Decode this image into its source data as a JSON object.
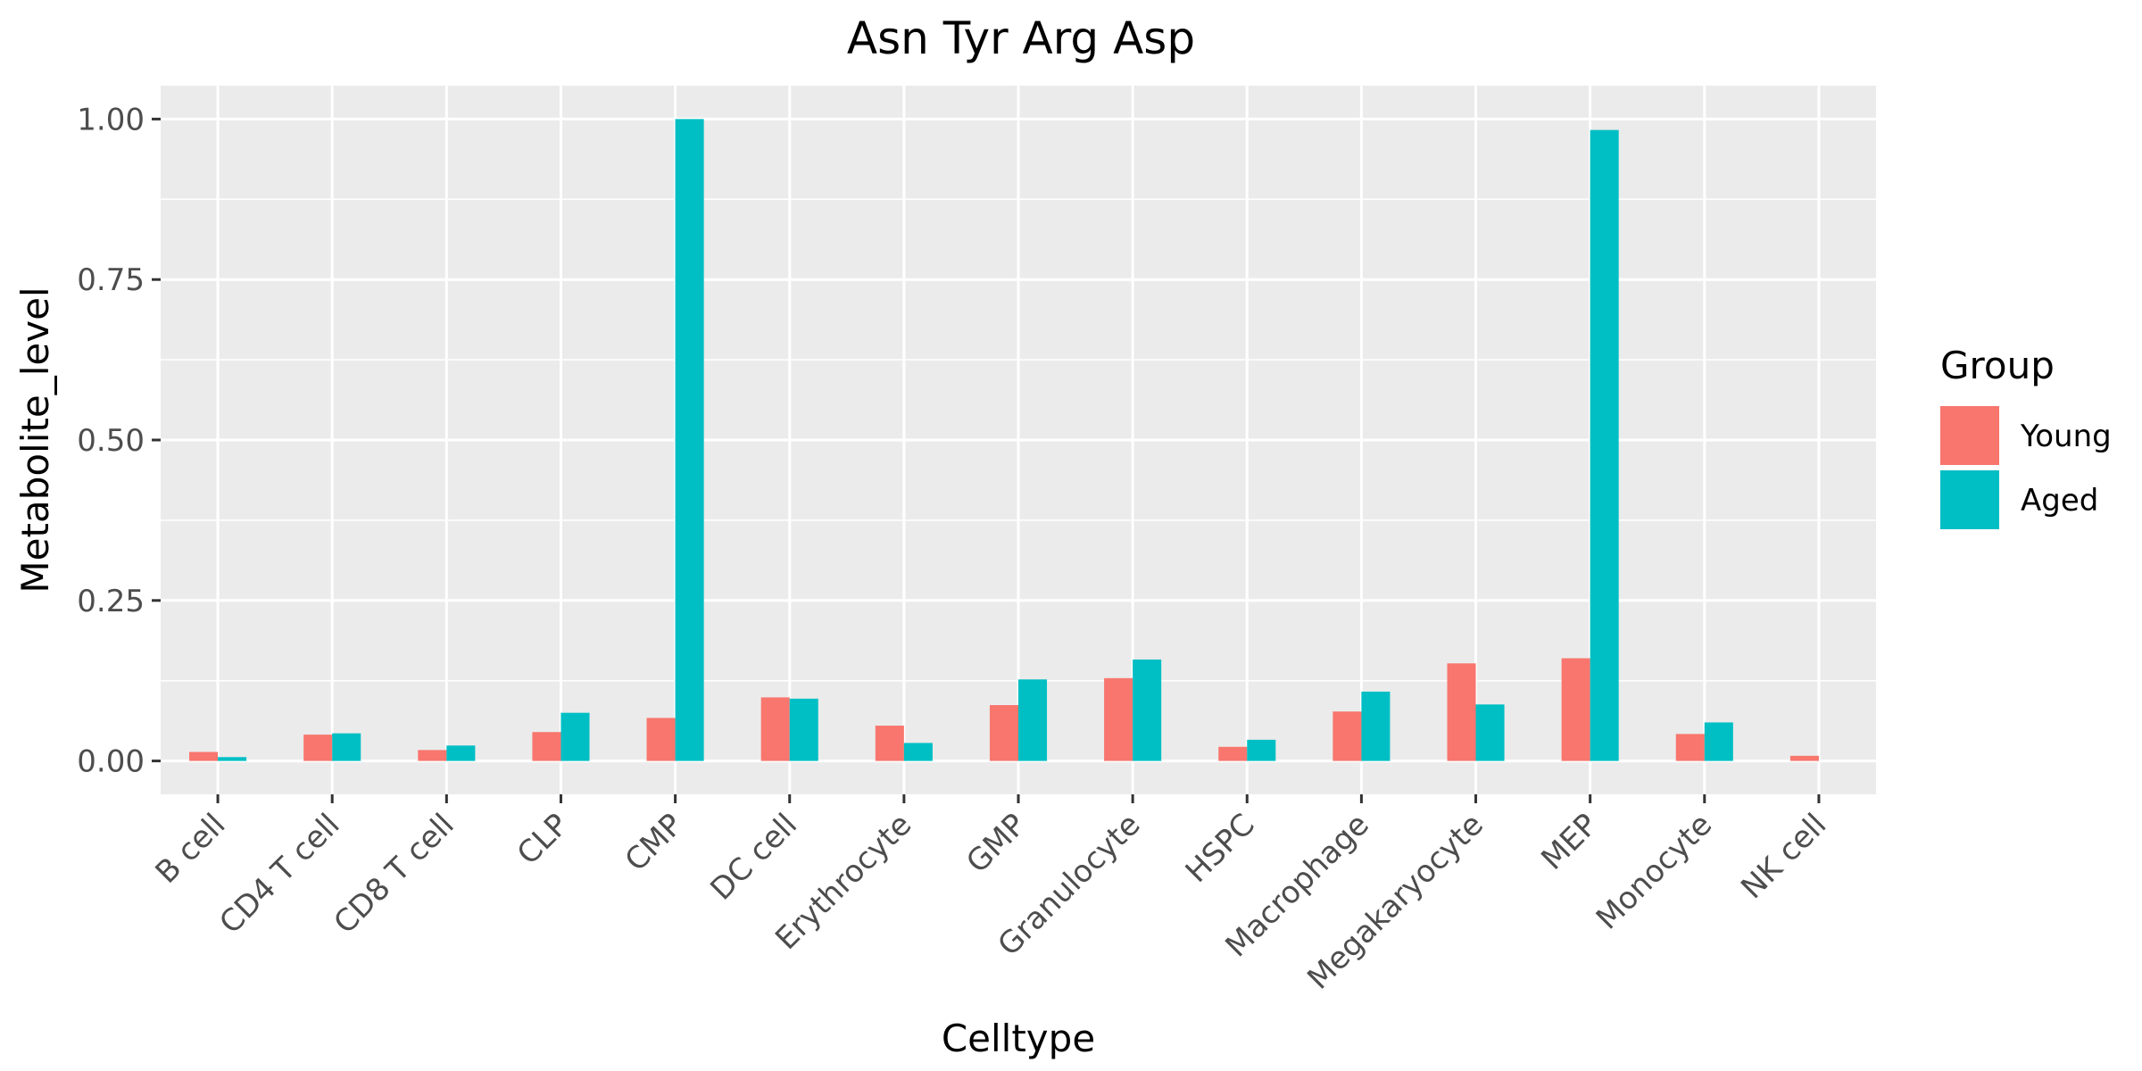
{
  "chart_data": {
    "type": "bar",
    "title": "Asn Tyr Arg Asp",
    "xlabel": "Celltype",
    "ylabel": "Metabolite_level",
    "ylim": [
      -0.052,
      1.052
    ],
    "yticks": [
      0,
      0.25,
      0.5,
      0.75,
      1
    ],
    "ytick_labels": [
      "0.00",
      "0.25",
      "0.50",
      "0.75",
      "1.00"
    ],
    "grid": true,
    "legend_title": "Group",
    "legend_position": "right",
    "categories": [
      "B cell",
      "CD4 T cell",
      "CD8 T cell",
      "CLP",
      "CMP",
      "DC cell",
      "Erythrocyte",
      "GMP",
      "Granulocyte",
      "HSPC",
      "Macrophage",
      "Megakaryocyte",
      "MEP",
      "Monocyte",
      "NK cell"
    ],
    "series": [
      {
        "name": "Young",
        "color": "#F8766D",
        "values": [
          0.014,
          0.041,
          0.017,
          0.045,
          0.067,
          0.099,
          0.055,
          0.087,
          0.129,
          0.022,
          0.077,
          0.152,
          0.16,
          0.042,
          0.008
        ]
      },
      {
        "name": "Aged",
        "color": "#00BFC4",
        "values": [
          0.006,
          0.043,
          0.024,
          0.075,
          1.0,
          0.097,
          0.028,
          0.127,
          0.158,
          0.033,
          0.108,
          0.088,
          0.983,
          0.06,
          0.0
        ]
      }
    ]
  },
  "style": {
    "panel_background": "#EBEBEB",
    "gridline_color": "#FFFFFF",
    "tick_color": "#333333"
  }
}
